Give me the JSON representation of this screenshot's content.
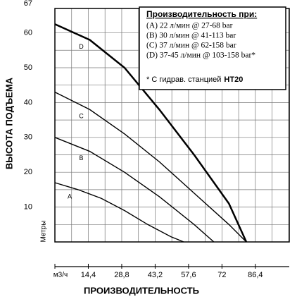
{
  "chart_data": {
    "type": "line",
    "y_label": "ВЫСОТА ПОДЪЕМА",
    "y_unit": "Метры",
    "x_label": "ПРОИЗВОДИТЕЛЬНОСТЬ",
    "x_unit": "м3/ч",
    "xlim": [
      0,
      101
    ],
    "ylim": [
      0,
      67
    ],
    "xticks": [
      {
        "value": 14.4,
        "label": "14,4"
      },
      {
        "value": 28.8,
        "label": "28,8"
      },
      {
        "value": 43.2,
        "label": "43,2"
      },
      {
        "value": 57.6,
        "label": "57,6"
      },
      72,
      {
        "value": 86.4,
        "label": "86,4"
      }
    ],
    "yticks": [
      10,
      20,
      30,
      40,
      50,
      60,
      67
    ],
    "grid": true,
    "series": [
      {
        "name": "A",
        "color": "#000000",
        "x": [
          0,
          10,
          20,
          30,
          40,
          50,
          55.5
        ],
        "values": [
          17,
          15,
          12.5,
          9,
          5,
          1.5,
          0
        ]
      },
      {
        "name": "B",
        "color": "#000000",
        "x": [
          0,
          15,
          30,
          45,
          60,
          68.5
        ],
        "values": [
          30,
          26,
          20,
          13,
          5,
          0
        ]
      },
      {
        "name": "C",
        "color": "#000000",
        "x": [
          0,
          15,
          30,
          45,
          60,
          75,
          82.5
        ],
        "values": [
          43,
          38,
          31,
          23,
          14,
          5,
          0
        ]
      },
      {
        "name": "D",
        "color": "#000000",
        "x": [
          0,
          15,
          30,
          45,
          60,
          75,
          82.5
        ],
        "values": [
          62.5,
          58,
          50,
          38,
          25,
          11,
          0
        ]
      }
    ],
    "legend": {
      "title": "Производительность при:",
      "lines": [
        "(A) 22 л/мин @ 27-68 bar",
        "(B) 30 л/мин @ 41-113 bar",
        "(C) 37 л/мин @ 62-158 bar",
        "(D) 37-45 л/мин @ 103-158 bar*"
      ],
      "note": "*  С гидрав. станцией",
      "note_bold": "HT20"
    }
  }
}
